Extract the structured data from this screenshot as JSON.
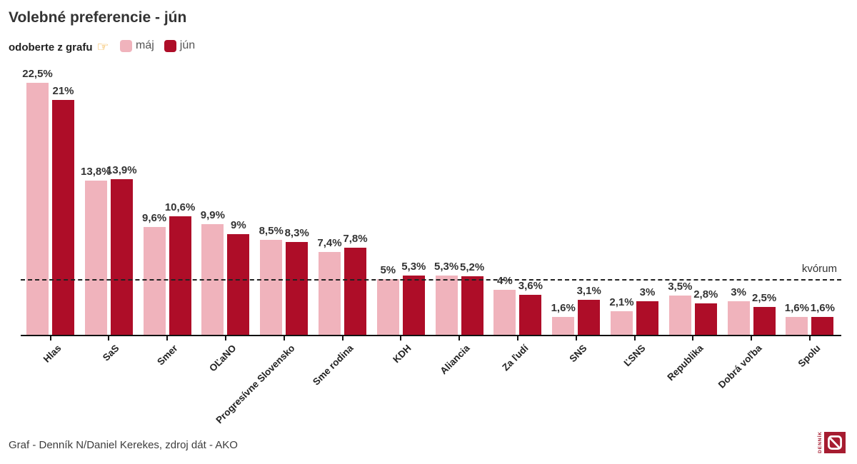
{
  "header": {
    "title": "Volebné preferencie - jún",
    "instruction": "odoberte z grafu",
    "pointer_char": "☞"
  },
  "legend": {
    "items": [
      {
        "label": "máj",
        "color": "#f0b3bc"
      },
      {
        "label": "jún",
        "color": "#ae0d28"
      }
    ]
  },
  "chart_data": {
    "type": "bar",
    "title": "Volebné preferencie - jún",
    "categories": [
      "Hlas",
      "SaS",
      "Smer",
      "OĽaNO",
      "Progresívne Slovensko",
      "Sme rodina",
      "KDH",
      "Aliancia",
      "Za ľudí",
      "SNS",
      "ĽSNS",
      "Republika",
      "Dobrá voľba",
      "Spolu"
    ],
    "series": [
      {
        "name": "máj",
        "color": "#f0b3bc",
        "values": [
          22.5,
          13.8,
          9.6,
          9.9,
          8.5,
          7.4,
          5,
          5.3,
          4,
          1.6,
          2.1,
          3.5,
          3,
          1.6
        ],
        "labels": [
          "22,5%",
          "13,8%",
          "9,6%",
          "9,9%",
          "8,5%",
          "7,4%",
          "5%",
          "5,3%",
          "4%",
          "1,6%",
          "2,1%",
          "3,5%",
          "3%",
          "1,6%"
        ]
      },
      {
        "name": "jún",
        "color": "#ae0d28",
        "values": [
          21,
          13.9,
          10.6,
          9,
          8.3,
          7.8,
          5.3,
          5.2,
          3.6,
          3.1,
          3,
          2.8,
          2.5,
          1.6
        ],
        "labels": [
          "21%",
          "13,9%",
          "10,6%",
          "9%",
          "8,3%",
          "7,8%",
          "5,3%",
          "5,2%",
          "3,6%",
          "3,1%",
          "3%",
          "2,8%",
          "2,5%",
          "1,6%"
        ]
      }
    ],
    "quorum_line": {
      "value": 5,
      "label": "kvórum",
      "style": "dashed"
    },
    "ylim": [
      0,
      24
    ],
    "grid": "off",
    "legend_position": "top-left",
    "value_label_format": "comma-decimal-percent"
  },
  "footer": {
    "credit": "Graf - Denník N/Daniel Kerekes, zdroj dát - AKO",
    "logo": {
      "brand_text": "DENNÍK",
      "mark_letter": "N",
      "color": "#a61c30"
    }
  }
}
